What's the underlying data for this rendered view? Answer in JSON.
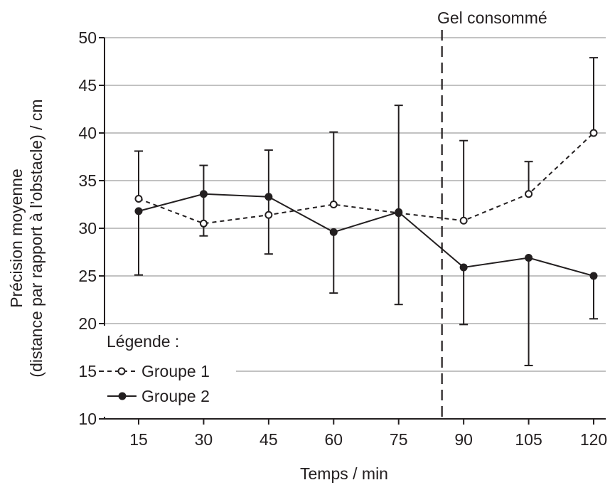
{
  "chart_data": {
    "type": "line",
    "x": [
      15,
      30,
      45,
      60,
      75,
      90,
      105,
      120
    ],
    "x_tick_labels": [
      "15",
      "30",
      "45",
      "60",
      "75",
      "90",
      "105",
      "120"
    ],
    "y_tick_labels": [
      "10",
      "15",
      "20",
      "25",
      "30",
      "35",
      "40",
      "45",
      "50"
    ],
    "ylim": [
      10,
      50
    ],
    "xlabel": "Temps / min",
    "ylabel_line1": "Précision moyenne",
    "ylabel_line2": "(distance par rapport à l’obstacle) / cm",
    "grid": true,
    "legend": {
      "title": "Légende :",
      "position": "bottom-left"
    },
    "marker_line": {
      "x": 85,
      "style": "dashed",
      "label": "Gel consommé"
    },
    "series": [
      {
        "name": "Groupe 1",
        "line_style": "dashed",
        "marker": "open-circle",
        "values": [
          33.1,
          30.5,
          31.4,
          32.5,
          31.6,
          30.8,
          33.6,
          40.0
        ],
        "error_lower": [
          null,
          29.2,
          27.3,
          null,
          null,
          null,
          null,
          null
        ],
        "error_upper": [
          38.1,
          36.6,
          38.2,
          40.1,
          42.9,
          39.2,
          37.0,
          47.9
        ]
      },
      {
        "name": "Groupe 2",
        "line_style": "solid",
        "marker": "filled-circle",
        "values": [
          31.8,
          33.6,
          33.3,
          29.6,
          31.7,
          25.9,
          26.9,
          25.0
        ],
        "error_lower": [
          25.1,
          null,
          null,
          23.2,
          22.0,
          19.9,
          15.6,
          20.5
        ],
        "error_upper": [
          null,
          null,
          null,
          null,
          null,
          null,
          null,
          null
        ]
      }
    ]
  }
}
